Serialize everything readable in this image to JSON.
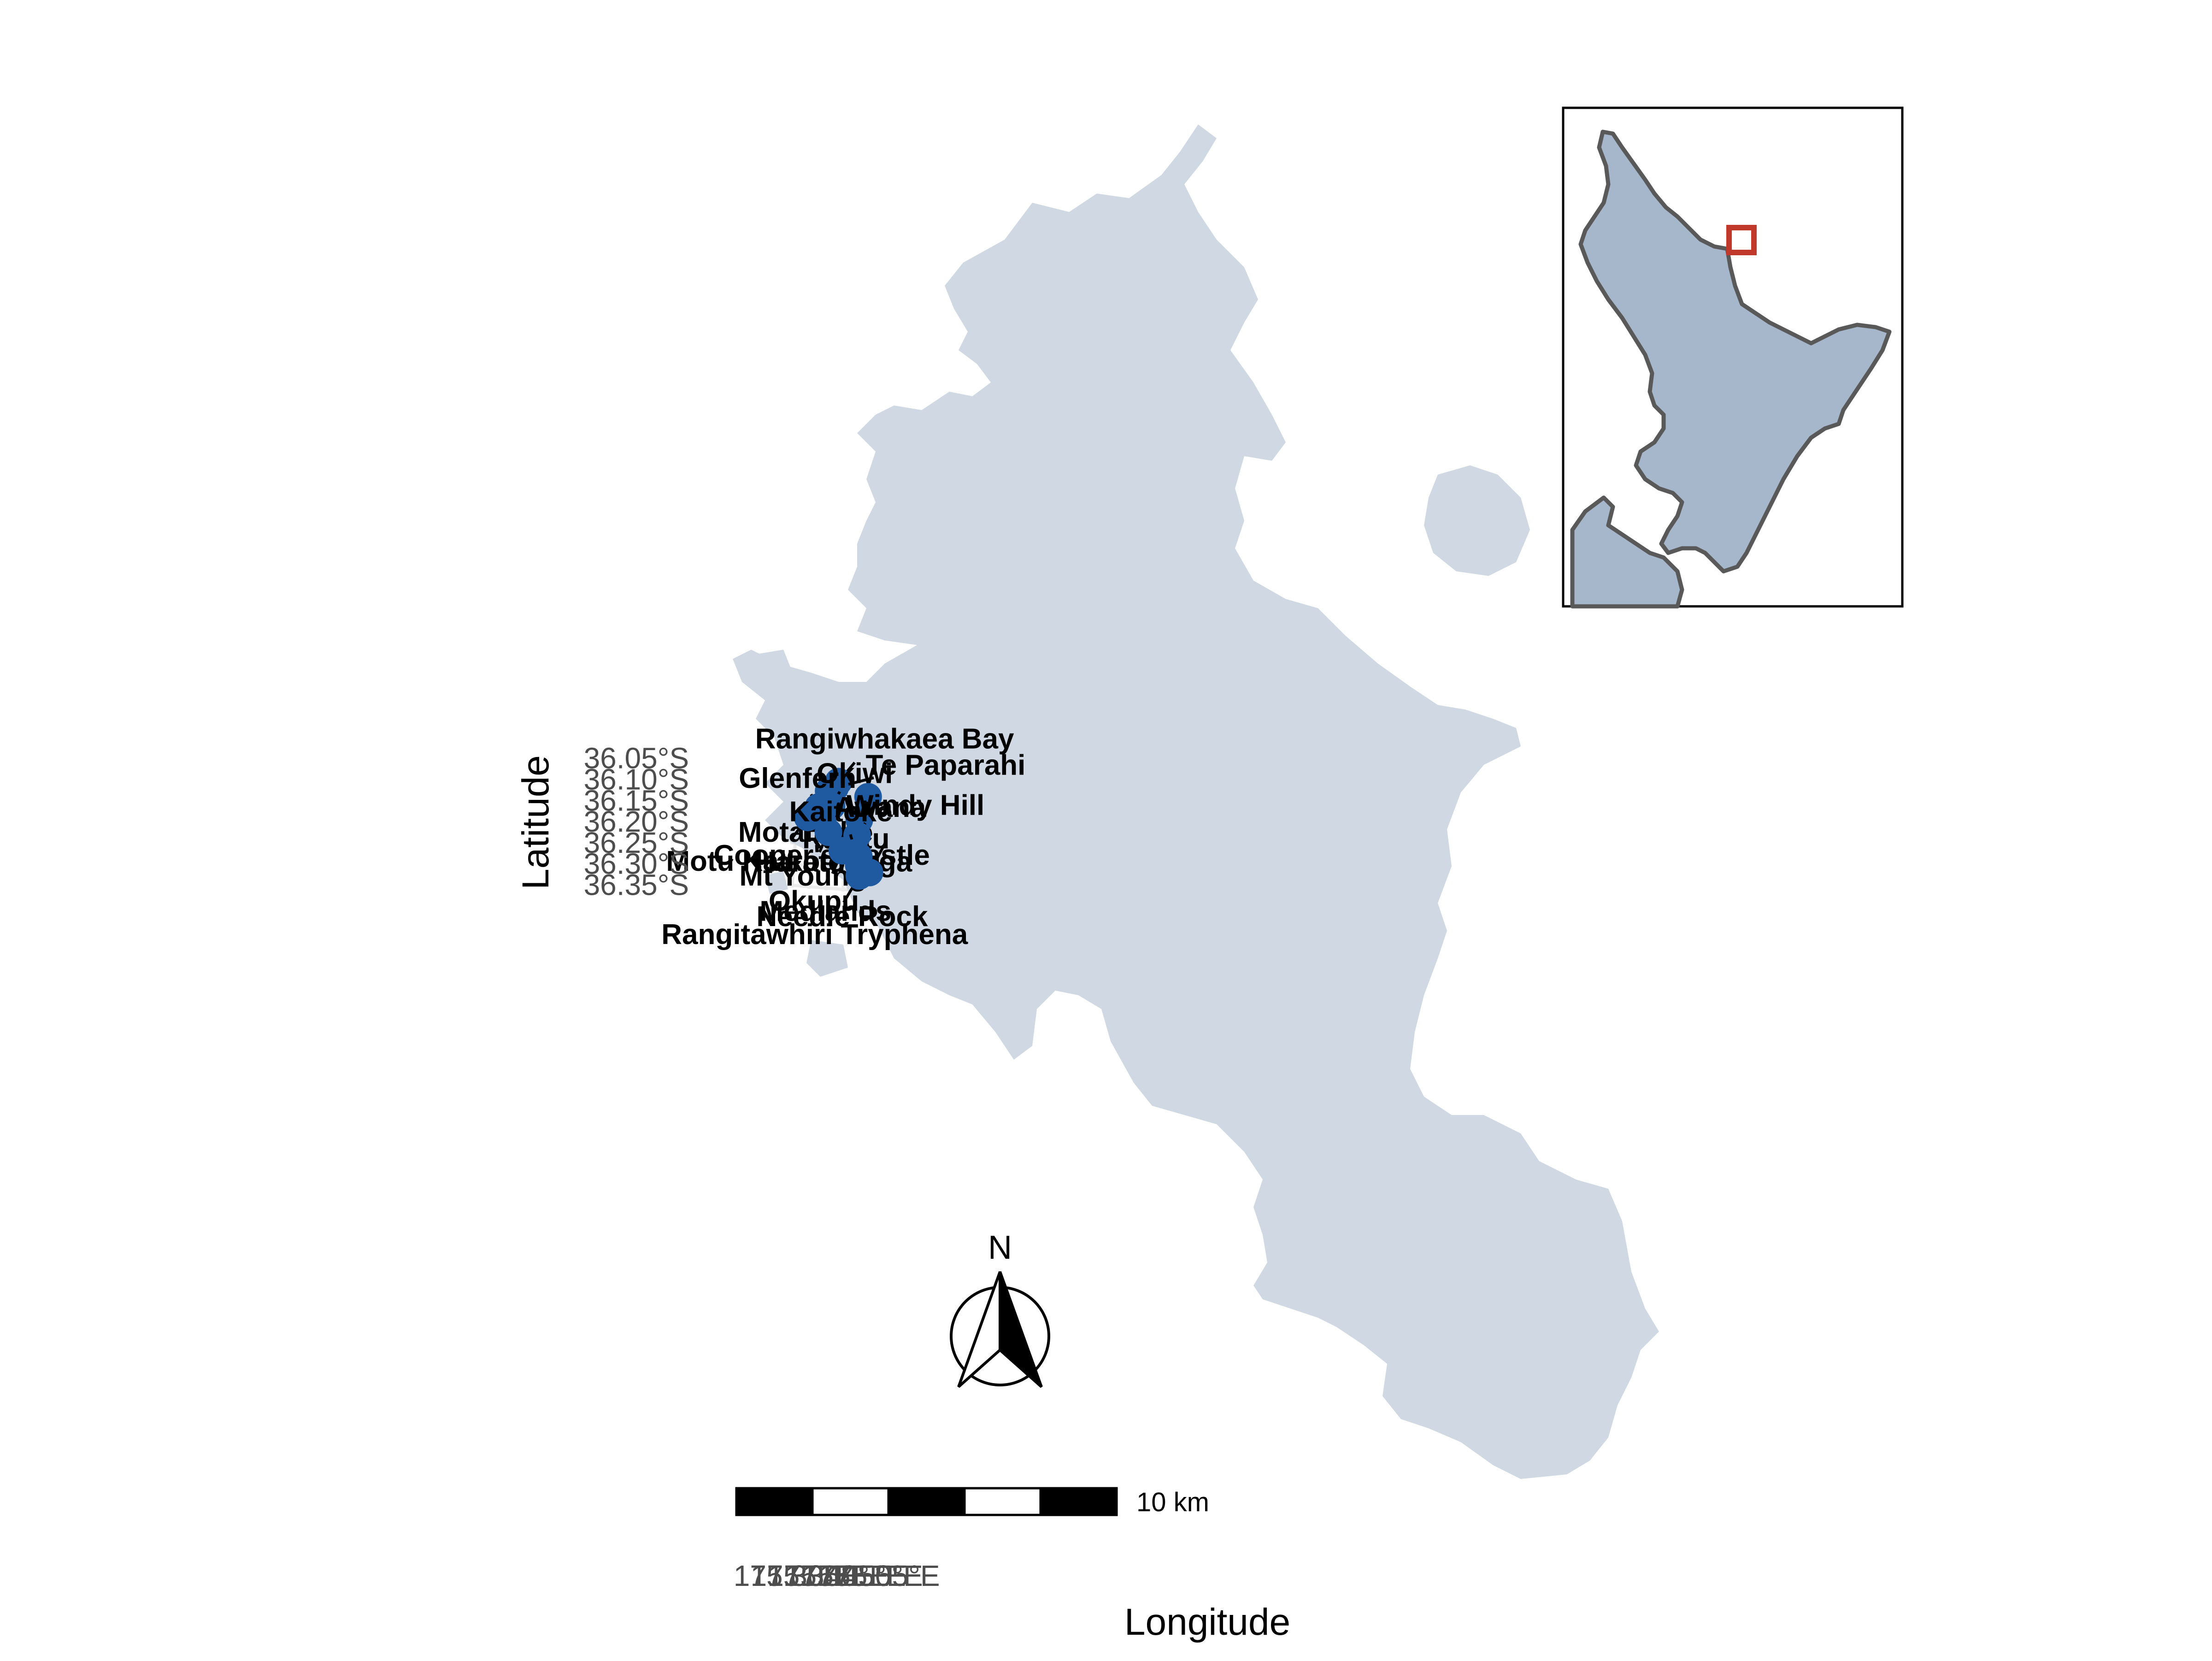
{
  "map": {
    "xlabel": "Longitude",
    "ylabel": "Latitude",
    "x_ticks": [
      "175.30°E",
      "175.35°E",
      "175.40°E",
      "175.45°E",
      "175.50°E",
      "175.55°E"
    ],
    "y_ticks": [
      "36.05°S",
      "36.10°S",
      "36.15°S",
      "36.20°S",
      "36.25°S",
      "36.30°S",
      "36.35°S"
    ],
    "land_color": "#d0d9e3",
    "point_color": "#1f5aa0",
    "grid_color": "#ebebeb"
  },
  "sites": [
    {
      "name": "Rangiwhakaea Bay",
      "lon": 175.414,
      "lat": -36.097
    },
    {
      "name": "Te Paparahi",
      "lon": 175.405,
      "lat": -36.112
    },
    {
      "name": "Motairehe",
      "lon": 175.387,
      "lat": -36.121
    },
    {
      "name": "Rakitu",
      "lon": 175.504,
      "lat": -36.127
    },
    {
      "name": "Okiwi",
      "lon": 175.399,
      "lat": -36.156
    },
    {
      "name": "Glenfern",
      "lon": 175.36,
      "lat": -36.161
    },
    {
      "name": "Cooper's Castle",
      "lon": 175.387,
      "lat": -36.167
    },
    {
      "name": "Haratoanga",
      "lon": 175.483,
      "lat": -36.183
    },
    {
      "name": "Motu Kaikoura",
      "lon": 175.331,
      "lat": -36.187
    },
    {
      "name": "Mt Young",
      "lon": 175.395,
      "lat": -36.218
    },
    {
      "name": "Awana",
      "lon": 175.48,
      "lat": -36.22
    },
    {
      "name": "Okupu",
      "lon": 175.44,
      "lat": -36.259
    },
    {
      "name": "Kaitoke",
      "lon": 175.479,
      "lat": -36.261
    },
    {
      "name": "Medlands",
      "lon": 175.489,
      "lat": -36.269
    },
    {
      "name": "Needle Rock",
      "lon": 175.491,
      "lat": -36.29
    },
    {
      "name": "Windy Hill",
      "lon": 175.524,
      "lat": -36.305
    },
    {
      "name": "Rangitawhiri Tryphena",
      "lon": 175.495,
      "lat": -36.315
    }
  ],
  "scale_bar": {
    "label": "10 km",
    "segments": 5
  },
  "north_arrow": {
    "label": "N",
    "icon": "north-arrow-icon"
  },
  "inset": {
    "region": "North Island, New Zealand",
    "land_color": "#a6b6cb",
    "outline_color": "#595959",
    "highlight_color": "#c0392b"
  }
}
